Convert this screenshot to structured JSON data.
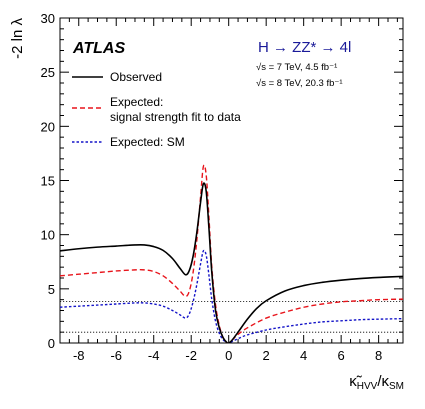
{
  "chart_data": {
    "type": "line",
    "xlabel": "κ̃_HVV/κ_SM",
    "ylabel": "-2 ln λ",
    "xlim": [
      -9,
      9.3
    ],
    "ylim": [
      0,
      30
    ],
    "x_ticks": [
      -8,
      -6,
      -4,
      -2,
      0,
      2,
      4,
      6,
      8
    ],
    "y_ticks": [
      0,
      5,
      10,
      15,
      20,
      25,
      30
    ],
    "grid": false,
    "experiment_label": "ATLAS",
    "channel_label": "H → ZZ* → 4l",
    "energy_labels": [
      "√s = 7 TeV, 4.5 fb⁻¹",
      "√s = 8 TeV, 20.3 fb⁻¹"
    ],
    "reference_lines": [
      1,
      3.84
    ],
    "legend_position": "top-left",
    "series": [
      {
        "name": "Observed",
        "color": "#000000",
        "style": "solid",
        "points": [
          [
            -9,
            8.5
          ],
          [
            -8,
            8.7
          ],
          [
            -7,
            8.85
          ],
          [
            -6,
            8.95
          ],
          [
            -5,
            9.05
          ],
          [
            -4.5,
            9.05
          ],
          [
            -4,
            8.9
          ],
          [
            -3.5,
            8.55
          ],
          [
            -3,
            7.8
          ],
          [
            -2.6,
            6.9
          ],
          [
            -2.3,
            6.3
          ],
          [
            -2.1,
            6.7
          ],
          [
            -1.9,
            8.0
          ],
          [
            -1.7,
            10.2
          ],
          [
            -1.5,
            13.0
          ],
          [
            -1.35,
            14.7
          ],
          [
            -1.2,
            14.0
          ],
          [
            -1.05,
            10.5
          ],
          [
            -0.9,
            6.5
          ],
          [
            -0.7,
            3.0
          ],
          [
            -0.5,
            1.4
          ],
          [
            -0.3,
            0.5
          ],
          [
            -0.1,
            0.05
          ],
          [
            0,
            0
          ],
          [
            0.2,
            0.3
          ],
          [
            0.5,
            1.0
          ],
          [
            1,
            2.2
          ],
          [
            1.5,
            3.2
          ],
          [
            2,
            3.9
          ],
          [
            3,
            4.8
          ],
          [
            4,
            5.3
          ],
          [
            5,
            5.6
          ],
          [
            6,
            5.8
          ],
          [
            7,
            5.95
          ],
          [
            8,
            6.05
          ],
          [
            9.3,
            6.15
          ]
        ]
      },
      {
        "name": "Expected: signal strength fit to data",
        "color": "#e8141b",
        "style": "dashed",
        "points": [
          [
            -9,
            6.2
          ],
          [
            -8,
            6.35
          ],
          [
            -7,
            6.5
          ],
          [
            -6,
            6.65
          ],
          [
            -5,
            6.75
          ],
          [
            -4.5,
            6.75
          ],
          [
            -4,
            6.6
          ],
          [
            -3.5,
            6.2
          ],
          [
            -3,
            5.5
          ],
          [
            -2.6,
            4.8
          ],
          [
            -2.3,
            4.3
          ],
          [
            -2.1,
            4.8
          ],
          [
            -1.9,
            6.5
          ],
          [
            -1.7,
            9.5
          ],
          [
            -1.5,
            13.5
          ],
          [
            -1.35,
            16.3
          ],
          [
            -1.2,
            15.5
          ],
          [
            -1.05,
            11.5
          ],
          [
            -0.9,
            7.0
          ],
          [
            -0.7,
            3.5
          ],
          [
            -0.5,
            1.6
          ],
          [
            -0.3,
            0.5
          ],
          [
            -0.1,
            0.05
          ],
          [
            0,
            0
          ],
          [
            0.2,
            0.3
          ],
          [
            0.5,
            0.8
          ],
          [
            1,
            1.4
          ],
          [
            2,
            2.3
          ],
          [
            3,
            2.85
          ],
          [
            4,
            3.3
          ],
          [
            5,
            3.6
          ],
          [
            6,
            3.8
          ],
          [
            7,
            3.9
          ],
          [
            8,
            4.0
          ],
          [
            9.3,
            4.05
          ]
        ]
      },
      {
        "name": "Expected: SM",
        "color": "#1414c8",
        "style": "dotted",
        "points": [
          [
            -9,
            3.3
          ],
          [
            -8,
            3.4
          ],
          [
            -7,
            3.5
          ],
          [
            -6,
            3.6
          ],
          [
            -5,
            3.7
          ],
          [
            -4.5,
            3.7
          ],
          [
            -4,
            3.6
          ],
          [
            -3.5,
            3.4
          ],
          [
            -3,
            3.0
          ],
          [
            -2.6,
            2.6
          ],
          [
            -2.3,
            2.3
          ],
          [
            -2.1,
            2.7
          ],
          [
            -1.9,
            3.8
          ],
          [
            -1.7,
            5.4
          ],
          [
            -1.5,
            7.3
          ],
          [
            -1.35,
            8.5
          ],
          [
            -1.2,
            8.1
          ],
          [
            -1.05,
            6.2
          ],
          [
            -0.9,
            4.0
          ],
          [
            -0.7,
            2.0
          ],
          [
            -0.5,
            0.9
          ],
          [
            -0.3,
            0.3
          ],
          [
            -0.1,
            0.03
          ],
          [
            0,
            0
          ],
          [
            0.2,
            0.15
          ],
          [
            0.5,
            0.4
          ],
          [
            1,
            0.75
          ],
          [
            2,
            1.2
          ],
          [
            3,
            1.5
          ],
          [
            4,
            1.75
          ],
          [
            5,
            1.95
          ],
          [
            6,
            2.05
          ],
          [
            7,
            2.15
          ],
          [
            8,
            2.2
          ],
          [
            9.3,
            2.25
          ]
        ]
      }
    ]
  }
}
